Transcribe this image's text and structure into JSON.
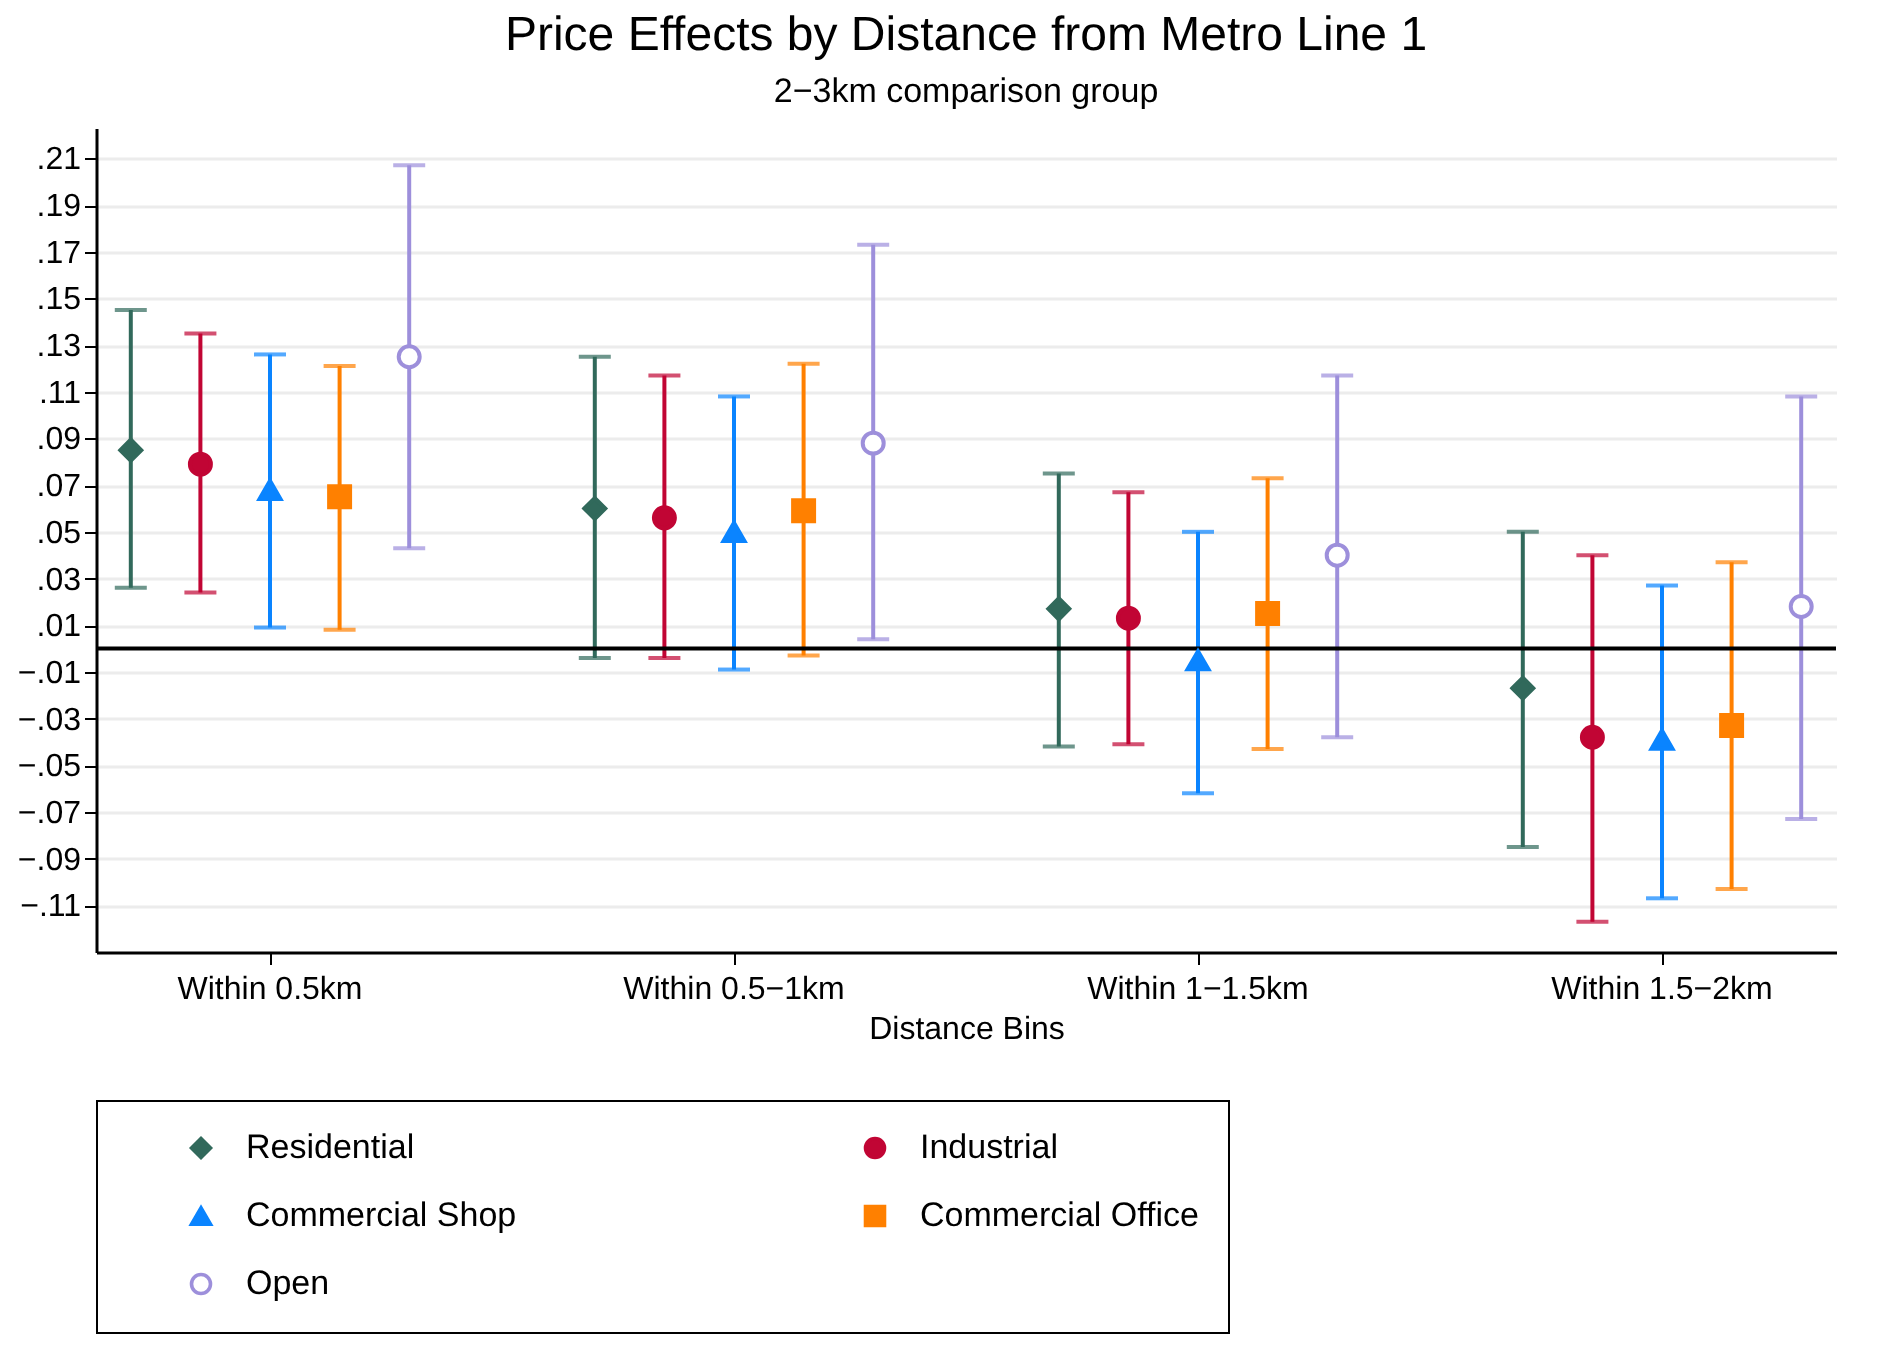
{
  "chart_data": {
    "type": "scatter",
    "title": "Price Effects by Distance from Metro Line 1",
    "subtitle": "2−3km comparison group",
    "xlabel": "Distance Bins",
    "categories": [
      "Within 0.5km",
      "Within 0.5−1km",
      "Within 1−1.5km",
      "Within 1.5−2km"
    ],
    "series": [
      {
        "name": "Residential",
        "color": "#31695b",
        "marker": "diamond",
        "values": [
          0.085,
          0.06,
          0.017,
          -0.017
        ],
        "errors": [
          [
            0.026,
            0.145
          ],
          [
            -0.004,
            0.125
          ],
          [
            -0.042,
            0.075
          ],
          [
            -0.085,
            0.05
          ]
        ]
      },
      {
        "name": "Industrial",
        "color": "#c10534",
        "marker": "circle",
        "values": [
          0.079,
          0.056,
          0.013,
          -0.038
        ],
        "errors": [
          [
            0.024,
            0.135
          ],
          [
            -0.004,
            0.117
          ],
          [
            -0.041,
            0.067
          ],
          [
            -0.117,
            0.04
          ]
        ]
      },
      {
        "name": "Commercial Shop",
        "color": "#0a84ff",
        "marker": "triangle",
        "values": [
          0.068,
          0.05,
          -0.005,
          -0.039
        ],
        "errors": [
          [
            0.009,
            0.126
          ],
          [
            -0.009,
            0.108
          ],
          [
            -0.062,
            0.05
          ],
          [
            -0.107,
            0.027
          ]
        ]
      },
      {
        "name": "Commercial Office",
        "color": "#ff8000",
        "marker": "square",
        "values": [
          0.065,
          0.059,
          0.015,
          -0.033
        ],
        "errors": [
          [
            0.008,
            0.121
          ],
          [
            -0.003,
            0.122
          ],
          [
            -0.043,
            0.073
          ],
          [
            -0.103,
            0.037
          ]
        ]
      },
      {
        "name": "Open",
        "color": "#9d8fdb",
        "marker": "circle",
        "values": [
          0.125,
          0.088,
          0.04,
          0.018
        ],
        "errors": [
          [
            0.043,
            0.207
          ],
          [
            0.004,
            0.173
          ],
          [
            -0.038,
            0.117
          ],
          [
            -0.073,
            0.108
          ]
        ]
      }
    ],
    "ylim": [
      -0.13,
      0.223
    ],
    "yticks": [
      {
        "value": 0.21,
        "label": ".21"
      },
      {
        "value": 0.19,
        "label": ".19"
      },
      {
        "value": 0.17,
        "label": ".17"
      },
      {
        "value": 0.15,
        "label": ".15"
      },
      {
        "value": 0.13,
        "label": ".13"
      },
      {
        "value": 0.11,
        "label": ".11"
      },
      {
        "value": 0.09,
        "label": ".09"
      },
      {
        "value": 0.07,
        "label": ".07"
      },
      {
        "value": 0.05,
        "label": ".05"
      },
      {
        "value": 0.03,
        "label": ".03"
      },
      {
        "value": 0.01,
        "label": ".01"
      },
      {
        "value": -0.01,
        "label": "−.01"
      },
      {
        "value": -0.03,
        "label": "−.03"
      },
      {
        "value": -0.05,
        "label": "−.05"
      },
      {
        "value": -0.07,
        "label": "−.07"
      },
      {
        "value": -0.09,
        "label": "−.09"
      },
      {
        "value": -0.11,
        "label": "−.11"
      }
    ],
    "grid": "y",
    "legend": "bottom",
    "ref_lines": [
      {
        "axis": "y",
        "value": 0,
        "color": "#000000"
      }
    ]
  }
}
